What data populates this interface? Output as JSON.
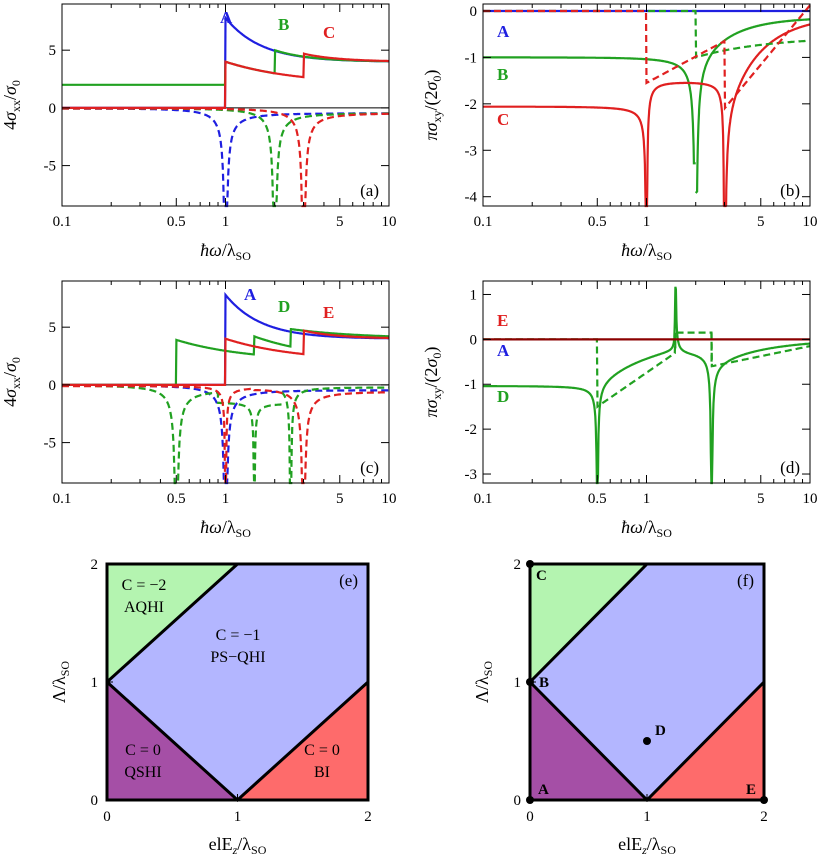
{
  "colors": {
    "A": "#1f1fe0",
    "B": "#21a121",
    "C": "#e02020",
    "D": "#21a121",
    "E": "#e02020",
    "Eb": "#8b0000",
    "purple": "#a54fa6",
    "green": "#b4f4b0",
    "blue": "#b3b6ff",
    "red": "#fe6b6b"
  },
  "chart_data": [
    {
      "type": "line",
      "panel": "(a)",
      "xlabel": "ħω/λ_SO",
      "ylabel": "4σxx/σ0",
      "xscale": "log",
      "xlim": [
        0.1,
        10
      ],
      "ylim": [
        -8.5,
        9
      ],
      "xticks": [
        "0.1",
        "0.5",
        "1",
        "5",
        "10"
      ],
      "yticks": [
        "-5",
        "0",
        "5"
      ],
      "series": [
        {
          "name": "A",
          "solid_jump_at": 1,
          "dashed_dip_at": 1
        },
        {
          "name": "B",
          "solid_jumps_at": [
            1,
            2
          ],
          "dashed_dip_at": 2
        },
        {
          "name": "C",
          "solid_jumps_at": [
            1,
            3
          ],
          "dashed_dip_at": 3
        }
      ]
    },
    {
      "type": "line",
      "panel": "(b)",
      "xlabel": "ħω/λ_SO",
      "ylabel": "πσxy/(2σ0)",
      "xscale": "log",
      "xlim": [
        0.1,
        10
      ],
      "ylim": [
        -4.2,
        0.15
      ],
      "xticks": [
        "0.1",
        "0.5",
        "1",
        "5",
        "10"
      ],
      "yticks": [
        "0",
        "-1",
        "-2",
        "-3",
        "-4"
      ],
      "series": [
        {
          "name": "A",
          "dc_value": 0
        },
        {
          "name": "B",
          "dc_value": -1
        },
        {
          "name": "C",
          "dc_value": -2
        }
      ]
    },
    {
      "type": "line",
      "panel": "(c)",
      "xlabel": "ħω/λ_SO",
      "ylabel": "4σxx/σ0",
      "xscale": "log",
      "xlim": [
        0.1,
        10
      ],
      "ylim": [
        -8.5,
        9
      ],
      "xticks": [
        "0.1",
        "0.5",
        "1",
        "5",
        "10"
      ],
      "yticks": [
        "-5",
        "0",
        "5"
      ],
      "series": [
        {
          "name": "A",
          "solid_jump_at": 1
        },
        {
          "name": "D",
          "solid_jumps_at": [
            0.5,
            1.5,
            2.5
          ]
        },
        {
          "name": "E",
          "solid_jumps_at": [
            1,
            3
          ]
        }
      ]
    },
    {
      "type": "line",
      "panel": "(d)",
      "xlabel": "ħω/λ_SO",
      "ylabel": "πσxy/(2σ0)",
      "xscale": "log",
      "xlim": [
        0.1,
        10
      ],
      "ylim": [
        -3.2,
        1.3
      ],
      "xticks": [
        "0.1",
        "0.5",
        "1",
        "5",
        "10"
      ],
      "yticks": [
        "1",
        "0",
        "-1",
        "-2",
        "-3"
      ],
      "series": [
        {
          "name": "E",
          "dc_value": 0
        },
        {
          "name": "A",
          "dc_value": 0
        },
        {
          "name": "D",
          "dc_value": -1
        }
      ]
    },
    {
      "type": "phase_diagram",
      "panel": "(e)",
      "xlabel": "elEz/λSO",
      "ylabel": "Λ/λSO",
      "xlim": [
        0,
        2
      ],
      "ylim": [
        0,
        2
      ],
      "xticks": [
        "0",
        "1",
        "2"
      ],
      "yticks": [
        "0",
        "1",
        "2"
      ],
      "regions": [
        {
          "line1": "C = −2",
          "line2": "AQHI"
        },
        {
          "line1": "C = −1",
          "line2": "PS−QHI"
        },
        {
          "line1": "C = 0",
          "line2": "QSHI"
        },
        {
          "line1": "C = 0",
          "line2": "BI"
        }
      ]
    },
    {
      "type": "phase_diagram",
      "panel": "(f)",
      "xlabel": "elEz/λSO",
      "ylabel": "Λ/λSO",
      "xlim": [
        0,
        2
      ],
      "ylim": [
        0,
        2
      ],
      "xticks": [
        "0",
        "1",
        "2"
      ],
      "yticks": [
        "0",
        "1",
        "2"
      ],
      "points": [
        {
          "name": "A",
          "x": 0,
          "y": 0
        },
        {
          "name": "B",
          "x": 0,
          "y": 1
        },
        {
          "name": "C",
          "x": 0,
          "y": 2
        },
        {
          "name": "D",
          "x": 1,
          "y": 0.5
        },
        {
          "name": "E",
          "x": 2,
          "y": 0
        }
      ]
    }
  ]
}
